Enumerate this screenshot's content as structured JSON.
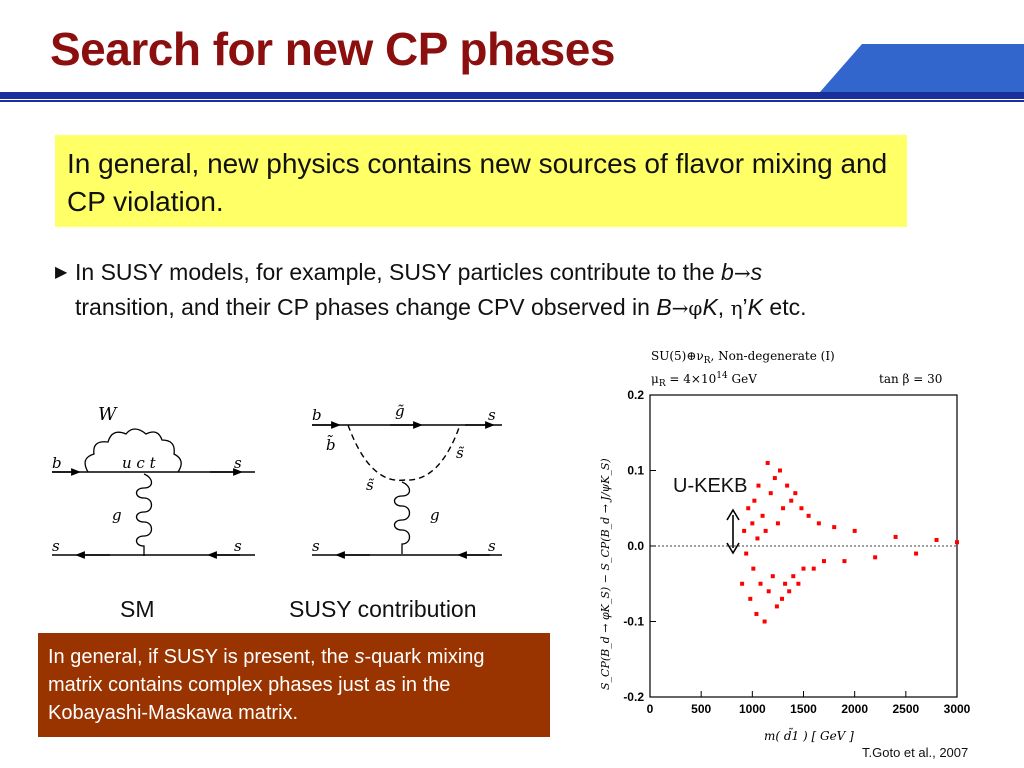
{
  "slide": {
    "title": "Search for new CP phases",
    "highlight": "In general, new physics contains new sources of flavor mixing and CP violation.",
    "bullet": {
      "line1_text": "In SUSY models, for example, SUSY particles contribute to the ",
      "line1_b": "b",
      "line1_arrow": "→",
      "line1_s": "s",
      "line2_text": "transition, and their CP phases change CPV observed in ",
      "line2_B": "B",
      "line2_arrow": "→",
      "line2_phi": "φ",
      "line2_K": "K",
      "line2_comma": ", ",
      "line2_eta": "η",
      "line2_prime": "’",
      "line2_K2": "K",
      "line2_etc": " etc."
    },
    "note": {
      "part1": "In general, if SUSY is present, the ",
      "s": "s",
      "part2": "-quark mixing matrix contains complex phases just as in the Kobayashi-Maskawa matrix."
    },
    "citation": "T.Goto et al., 2007",
    "annotation": "U-KEKB"
  },
  "diagrams": {
    "sm": {
      "caption": "SM",
      "labels": {
        "w": "W",
        "b": "b",
        "s_top": "s",
        "uct": "u c t",
        "g": "g",
        "s_left": "s",
        "s_right": "s"
      }
    },
    "susy": {
      "caption": "SUSY contribution",
      "labels": {
        "b": "b",
        "gluino": "g̃",
        "s_top": "s",
        "b_tilde": "b̃",
        "s_tilde_right": "s̃",
        "s_tilde_left": "s̃",
        "g": "g",
        "s_left": "s",
        "s_right": "s"
      }
    }
  },
  "chart_data": {
    "type": "scatter",
    "legend_line1": "SU(5)⊕ν",
    "legend_line1_sub": "R",
    "legend_line1_rest": ", Non-degenerate (I)",
    "legend_line2": "μ",
    "legend_line2_sub": "R",
    "legend_line2_rest": " = 4×10",
    "legend_line2_sup": "14",
    "legend_line2_unit": " GeV",
    "legend_tan": "tan β = 30",
    "xlabel": "m( d̃1 ) [ GeV ]",
    "ylabel": "S_CP(B_d → φK_S) − S_CP(B_d → J/ψK_S)",
    "xlim": [
      0,
      3000
    ],
    "ylim": [
      -0.2,
      0.2
    ],
    "xticks": [
      "0",
      "500",
      "1000",
      "1500",
      "2000",
      "2500",
      "3000"
    ],
    "yticks": [
      "0.2",
      "0.1",
      "0.0",
      "-0.1",
      "-0.2"
    ],
    "marker_color": "#ff0000",
    "points": [
      [
        900,
        -0.05
      ],
      [
        920,
        0.02
      ],
      [
        940,
        -0.01
      ],
      [
        960,
        0.05
      ],
      [
        980,
        -0.07
      ],
      [
        1000,
        0.03
      ],
      [
        1010,
        -0.03
      ],
      [
        1020,
        0.06
      ],
      [
        1040,
        -0.09
      ],
      [
        1050,
        0.01
      ],
      [
        1060,
        0.08
      ],
      [
        1080,
        -0.05
      ],
      [
        1100,
        0.04
      ],
      [
        1120,
        -0.1
      ],
      [
        1130,
        0.02
      ],
      [
        1150,
        0.11
      ],
      [
        1160,
        -0.06
      ],
      [
        1180,
        0.07
      ],
      [
        1200,
        -0.04
      ],
      [
        1220,
        0.09
      ],
      [
        1240,
        -0.08
      ],
      [
        1250,
        0.03
      ],
      [
        1270,
        0.1
      ],
      [
        1290,
        -0.07
      ],
      [
        1300,
        0.05
      ],
      [
        1320,
        -0.05
      ],
      [
        1340,
        0.08
      ],
      [
        1360,
        -0.06
      ],
      [
        1380,
        0.06
      ],
      [
        1400,
        -0.04
      ],
      [
        1420,
        0.07
      ],
      [
        1450,
        -0.05
      ],
      [
        1480,
        0.05
      ],
      [
        1500,
        -0.03
      ],
      [
        1550,
        0.04
      ],
      [
        1600,
        -0.03
      ],
      [
        1650,
        0.03
      ],
      [
        1700,
        -0.02
      ],
      [
        1800,
        0.025
      ],
      [
        1900,
        -0.02
      ],
      [
        2000,
        0.02
      ],
      [
        2200,
        -0.015
      ],
      [
        2400,
        0.012
      ],
      [
        2600,
        -0.01
      ],
      [
        2800,
        0.008
      ],
      [
        3000,
        0.005
      ]
    ],
    "annotation_arrow_range": [
      -0.005,
      0.045
    ]
  }
}
